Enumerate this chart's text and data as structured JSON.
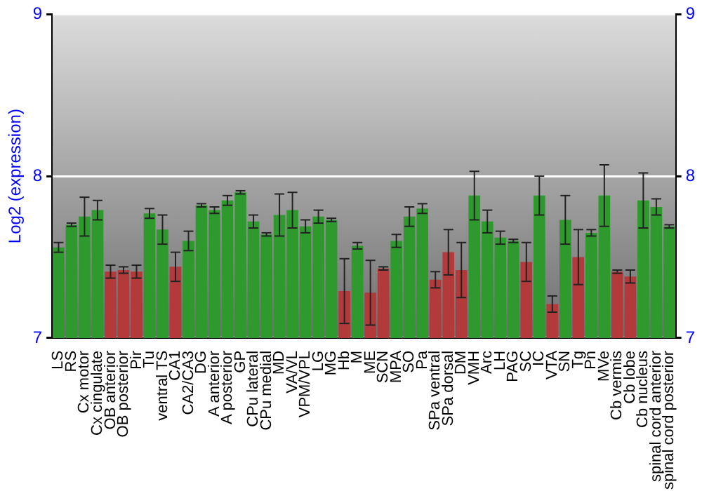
{
  "chart_data": {
    "type": "bar",
    "ylabel": "Log2 (expression)",
    "categories": [
      "LS",
      "RS",
      "Cx motor",
      "Cx cingulate",
      "OB anterior",
      "OB posterior",
      "Pir",
      "Tu",
      "ventral TS",
      "CA1",
      "CA2/CA3",
      "DG",
      "A anterior",
      "A posterior",
      "GP",
      "CPu lateral",
      "CPu medial",
      "MD",
      "VA/VL",
      "VPM/VPL",
      "LG",
      "MG",
      "Hb",
      "M",
      "ME",
      "SCN",
      "MPA",
      "SO",
      "Pa",
      "SPa ventral",
      "SPa dorsal",
      "DM",
      "VMH",
      "Arc",
      "LH",
      "PAG",
      "SC",
      "IC",
      "VTA",
      "SN",
      "Tg",
      "Pn",
      "MVe",
      "Cb vermis",
      "Cb lobe",
      "Cb nucleus",
      "spinal cord anterior",
      "spinal cord posterior"
    ],
    "values": [
      7.56,
      7.7,
      7.75,
      7.79,
      7.41,
      7.42,
      7.41,
      7.77,
      7.67,
      7.44,
      7.6,
      7.82,
      7.79,
      7.85,
      7.9,
      7.72,
      7.64,
      7.76,
      7.79,
      7.69,
      7.75,
      7.73,
      7.29,
      7.57,
      7.28,
      7.43,
      7.6,
      7.75,
      7.8,
      7.36,
      7.53,
      7.42,
      7.88,
      7.72,
      7.62,
      7.6,
      7.47,
      7.88,
      7.21,
      7.73,
      7.5,
      7.65,
      7.88,
      7.41,
      7.38,
      7.85,
      7.81,
      7.69
    ],
    "errors": [
      0.03,
      0.01,
      0.12,
      0.06,
      0.04,
      0.02,
      0.04,
      0.03,
      0.09,
      0.09,
      0.06,
      0.01,
      0.02,
      0.03,
      0.01,
      0.04,
      0.01,
      0.13,
      0.11,
      0.04,
      0.04,
      0.01,
      0.2,
      0.02,
      0.2,
      0.01,
      0.04,
      0.06,
      0.03,
      0.05,
      0.14,
      0.17,
      0.15,
      0.07,
      0.04,
      0.01,
      0.12,
      0.12,
      0.05,
      0.15,
      0.17,
      0.02,
      0.19,
      0.01,
      0.04,
      0.17,
      0.05,
      0.01
    ],
    "colors": [
      "#2e9a2e",
      "#2e9a2e",
      "#2e9a2e",
      "#2e9a2e",
      "#b23a3a",
      "#b23a3a",
      "#b23a3a",
      "#2e9a2e",
      "#2e9a2e",
      "#b23a3a",
      "#2e9a2e",
      "#2e9a2e",
      "#2e9a2e",
      "#2e9a2e",
      "#2e9a2e",
      "#2e9a2e",
      "#2e9a2e",
      "#2e9a2e",
      "#2e9a2e",
      "#2e9a2e",
      "#2e9a2e",
      "#2e9a2e",
      "#b23a3a",
      "#2e9a2e",
      "#b23a3a",
      "#b23a3a",
      "#2e9a2e",
      "#2e9a2e",
      "#2e9a2e",
      "#b23a3a",
      "#b23a3a",
      "#b23a3a",
      "#2e9a2e",
      "#2e9a2e",
      "#2e9a2e",
      "#2e9a2e",
      "#b23a3a",
      "#2e9a2e",
      "#b23a3a",
      "#2e9a2e",
      "#b23a3a",
      "#2e9a2e",
      "#2e9a2e",
      "#b23a3a",
      "#b23a3a",
      "#2e9a2e",
      "#2e9a2e",
      "#2e9a2e"
    ],
    "ylim": [
      7,
      9
    ],
    "yticks": [
      7,
      8,
      9
    ],
    "y2lim": [
      7,
      9
    ],
    "y2ticks": [
      7,
      8,
      9
    ],
    "grid": "y"
  }
}
